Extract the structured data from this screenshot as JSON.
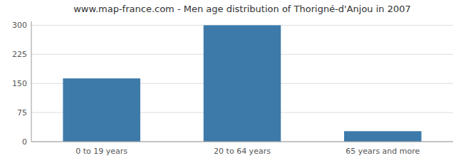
{
  "chart_data": {
    "type": "bar",
    "title": "www.map-france.com - Men age distribution of Thorigné-d'Anjou in 2007",
    "categories": [
      "0 to 19 years",
      "20 to 64 years",
      "65 years and more"
    ],
    "values": [
      163,
      300,
      27
    ],
    "color": "#3d7aaa",
    "ylim": [
      0,
      310
    ],
    "yticks": [
      0,
      75,
      150,
      225,
      300
    ],
    "grid": true
  }
}
